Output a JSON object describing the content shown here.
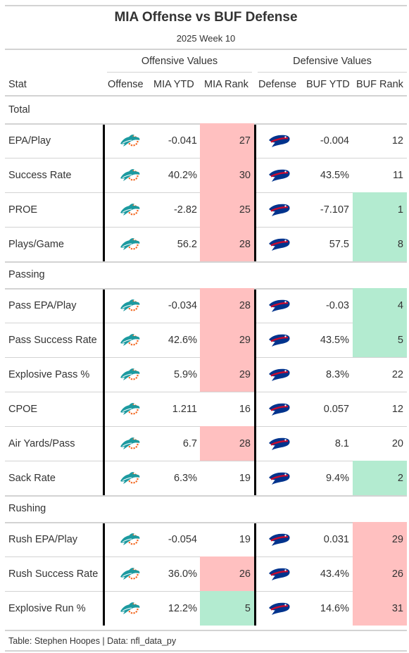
{
  "chart_data": {
    "type": "table",
    "title": "MIA Offense vs BUF Defense",
    "subtitle": "2025 Week 10",
    "spanners": {
      "offense": "Offensive Values",
      "defense": "Defensive Values"
    },
    "columns": [
      "Stat",
      "Offense",
      "MIA YTD",
      "MIA Rank",
      "Defense",
      "BUF YTD",
      "BUF Rank"
    ],
    "groups": [
      {
        "name": "Total",
        "rows": [
          {
            "stat": "EPA/Play",
            "mia_ytd": "-0.041",
            "mia_rank": "27",
            "buf_ytd": "-0.004",
            "buf_rank": "12"
          },
          {
            "stat": "Success Rate",
            "mia_ytd": "40.2%",
            "mia_rank": "30",
            "buf_ytd": "43.5%",
            "buf_rank": "11"
          },
          {
            "stat": "PROE",
            "mia_ytd": "-2.82",
            "mia_rank": "25",
            "buf_ytd": "-7.107",
            "buf_rank": "1"
          },
          {
            "stat": "Plays/Game",
            "mia_ytd": "56.2",
            "mia_rank": "28",
            "buf_ytd": "57.5",
            "buf_rank": "8"
          }
        ]
      },
      {
        "name": "Passing",
        "rows": [
          {
            "stat": "Pass EPA/Play",
            "mia_ytd": "-0.034",
            "mia_rank": "28",
            "buf_ytd": "-0.03",
            "buf_rank": "4"
          },
          {
            "stat": "Pass Success Rate",
            "mia_ytd": "42.6%",
            "mia_rank": "29",
            "buf_ytd": "43.5%",
            "buf_rank": "5"
          },
          {
            "stat": "Explosive Pass %",
            "mia_ytd": "5.9%",
            "mia_rank": "29",
            "buf_ytd": "8.3%",
            "buf_rank": "22"
          },
          {
            "stat": "CPOE",
            "mia_ytd": "1.211",
            "mia_rank": "16",
            "buf_ytd": "0.057",
            "buf_rank": "12"
          },
          {
            "stat": "Air Yards/Pass",
            "mia_ytd": "6.7",
            "mia_rank": "28",
            "buf_ytd": "8.1",
            "buf_rank": "20"
          },
          {
            "stat": "Sack Rate",
            "mia_ytd": "6.3%",
            "mia_rank": "19",
            "buf_ytd": "9.4%",
            "buf_rank": "2"
          }
        ]
      },
      {
        "name": "Rushing",
        "rows": [
          {
            "stat": "Rush EPA/Play",
            "mia_ytd": "-0.054",
            "mia_rank": "19",
            "buf_ytd": "0.031",
            "buf_rank": "29"
          },
          {
            "stat": "Rush Success Rate",
            "mia_ytd": "36.0%",
            "mia_rank": "26",
            "buf_ytd": "43.4%",
            "buf_rank": "26"
          },
          {
            "stat": "Explosive Run %",
            "mia_ytd": "12.2%",
            "mia_rank": "5",
            "buf_ytd": "14.6%",
            "buf_rank": "31"
          }
        ]
      }
    ],
    "rank_colors": {
      "bad": "#ffc0c0",
      "good": "#b3ebd0"
    },
    "logos": {
      "offense": "dolphins-logo",
      "defense": "bills-logo"
    },
    "footer": "Table: Stephen Hoopes | Data: nfl_data_py"
  }
}
